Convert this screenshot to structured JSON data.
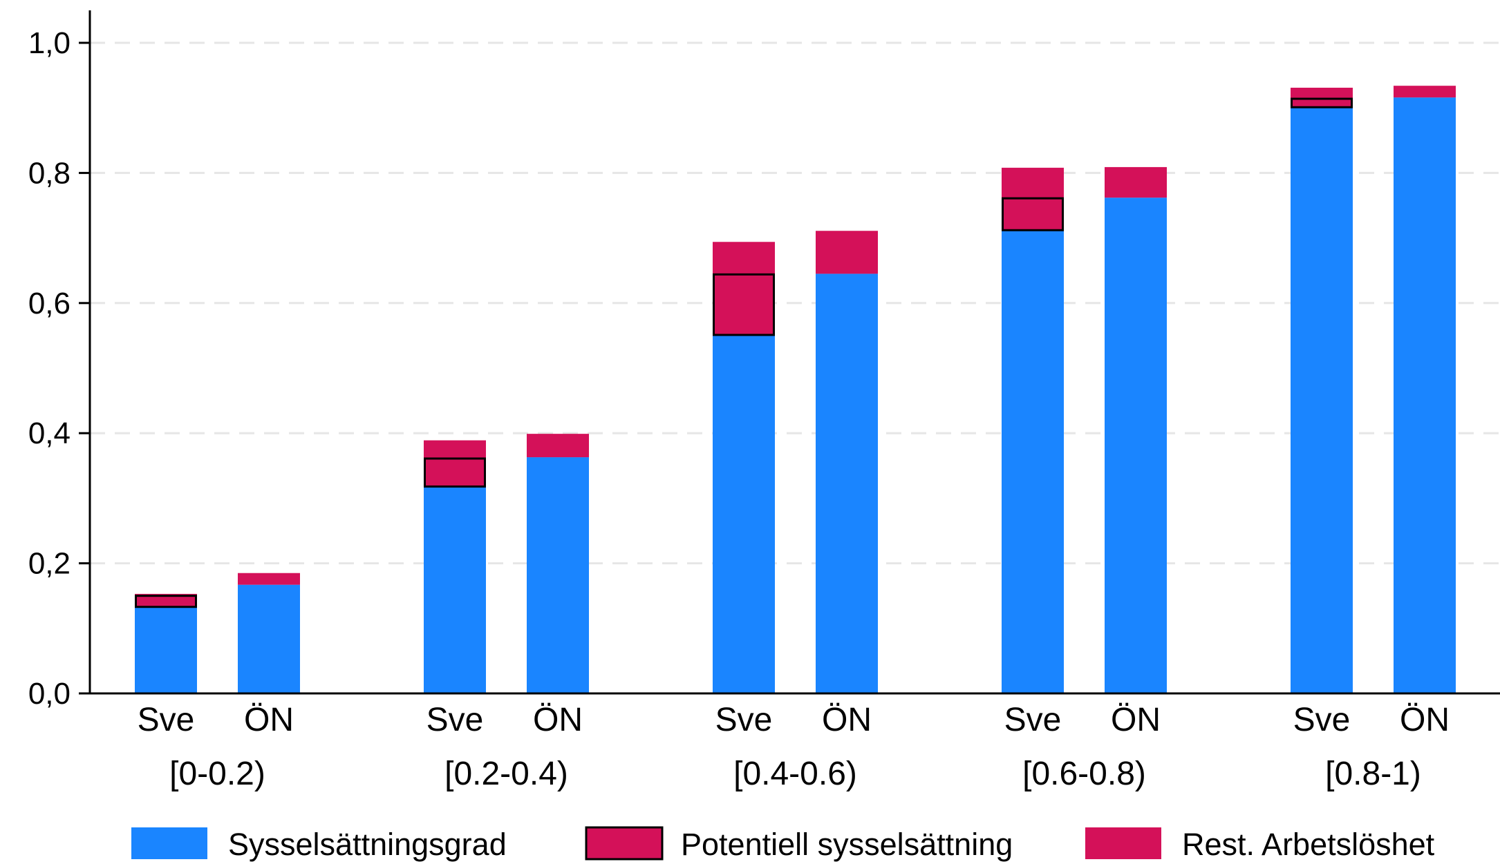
{
  "chart_data": {
    "type": "bar",
    "stacked": true,
    "title": "",
    "xlabel": "",
    "ylabel": "",
    "ylim": [
      0,
      1.05
    ],
    "yticks": [
      "0,0",
      "0,2",
      "0,4",
      "0,6",
      "0,8",
      "1,0"
    ],
    "ytick_values": [
      0,
      0.2,
      0.4,
      0.6,
      0.8,
      1.0
    ],
    "grid": true,
    "legend_position": "bottom",
    "groups": [
      "[0-0.2)",
      "[0.2-0.4)",
      "[0.4-0.6)",
      "[0.6-0.8)",
      "[0.8-1)"
    ],
    "subcategories": [
      "Sve",
      "ÖN"
    ],
    "colors": {
      "sysselsattningsgrad": "#1a85ff",
      "potentiell": "#d41159",
      "rest": "#d41159",
      "outline": "#000000"
    },
    "legend": [
      {
        "key": "sysselsattningsgrad",
        "label": "Sysselsättningsgrad"
      },
      {
        "key": "potentiell",
        "label": "Potentiell sysselsättning"
      },
      {
        "key": "rest",
        "label": "Rest. Arbetslöshet"
      }
    ],
    "bars": [
      {
        "group": 0,
        "sub": "Sve",
        "sysselsattningsgrad": 0.133,
        "potentiell": 0.017,
        "rest": 0.003
      },
      {
        "group": 0,
        "sub": "ÖN",
        "sysselsattningsgrad": 0.167,
        "potentiell": 0,
        "rest": 0.018
      },
      {
        "group": 1,
        "sub": "Sve",
        "sysselsattningsgrad": 0.318,
        "potentiell": 0.043,
        "rest": 0.028
      },
      {
        "group": 1,
        "sub": "ÖN",
        "sysselsattningsgrad": 0.363,
        "potentiell": 0,
        "rest": 0.036
      },
      {
        "group": 2,
        "sub": "Sve",
        "sysselsattningsgrad": 0.551,
        "potentiell": 0.093,
        "rest": 0.05
      },
      {
        "group": 2,
        "sub": "ÖN",
        "sysselsattningsgrad": 0.645,
        "potentiell": 0,
        "rest": 0.066
      },
      {
        "group": 3,
        "sub": "Sve",
        "sysselsattningsgrad": 0.712,
        "potentiell": 0.049,
        "rest": 0.047
      },
      {
        "group": 3,
        "sub": "ÖN",
        "sysselsattningsgrad": 0.762,
        "potentiell": 0,
        "rest": 0.047
      },
      {
        "group": 4,
        "sub": "Sve",
        "sysselsattningsgrad": 0.901,
        "potentiell": 0.013,
        "rest": 0.017
      },
      {
        "group": 4,
        "sub": "ÖN",
        "sysselsattningsgrad": 0.916,
        "potentiell": 0,
        "rest": 0.018
      }
    ]
  }
}
